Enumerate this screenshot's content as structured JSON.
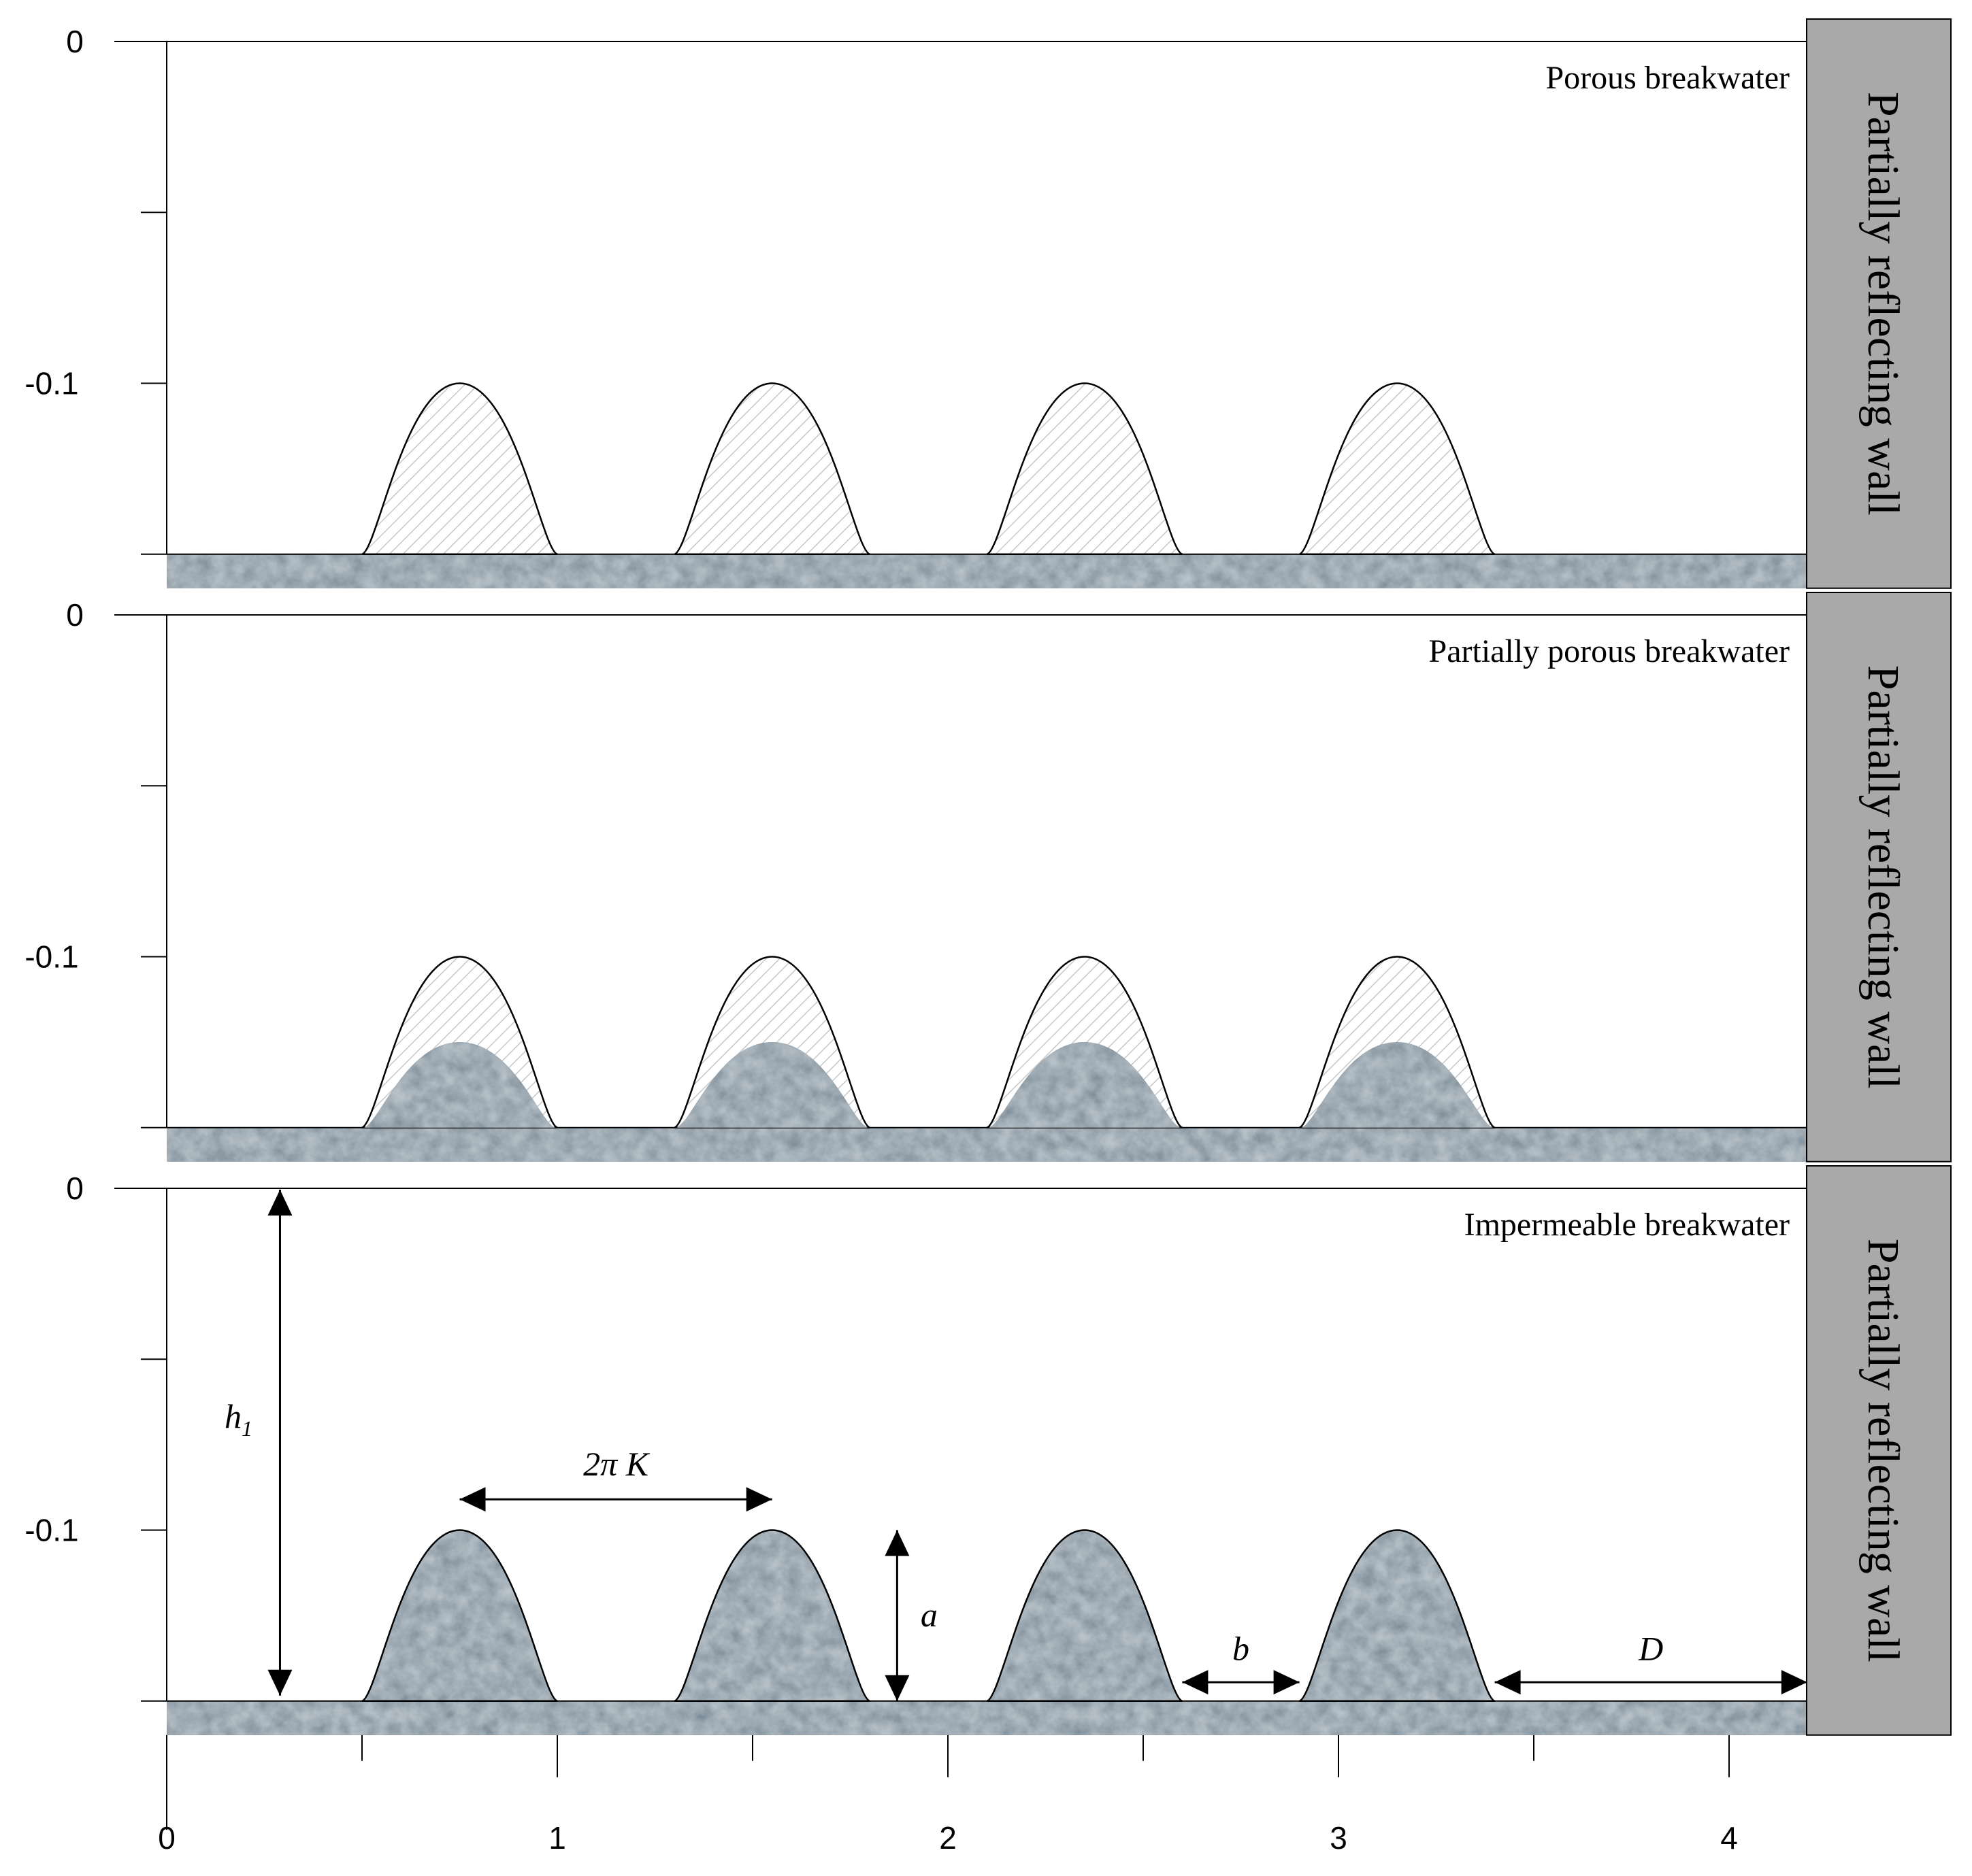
{
  "chart_data": {
    "type": "diagram",
    "description_panels": [
      {
        "title": "Porous breakwater",
        "wall_label": "Partially reflecting wall",
        "y_tick_labels": [
          "0",
          "-0.1"
        ],
        "rock_fill": "none"
      },
      {
        "title": "Partially porous breakwater",
        "wall_label": "Partially reflecting wall",
        "y_tick_labels": [
          "0",
          "-0.1"
        ],
        "rock_fill": "partial"
      },
      {
        "title": "Impermeable breakwater",
        "wall_label": "Partially reflecting wall",
        "y_tick_labels": [
          "0",
          "-0.1"
        ],
        "rock_fill": "full"
      }
    ],
    "x_tick_labels": [
      "0",
      "1",
      "2",
      "3",
      "4"
    ],
    "xlim": [
      0,
      4.2
    ],
    "ylim": [
      -0.15,
      0
    ],
    "bed_level": -0.15,
    "bar_crest_level": -0.1,
    "bar_centers": [
      0.75,
      1.55,
      2.35,
      3.15
    ],
    "bar_half_width": 0.25,
    "dimension_labels": {
      "h1": "h",
      "h1_sub": "1",
      "two_pi_k": "2π K",
      "a": "a",
      "b": "b",
      "D": "D"
    }
  },
  "colors": {
    "wall_fill": "#a9a9a9",
    "rock_base": "#4d5d68",
    "hatch": "#c8c8c8"
  }
}
